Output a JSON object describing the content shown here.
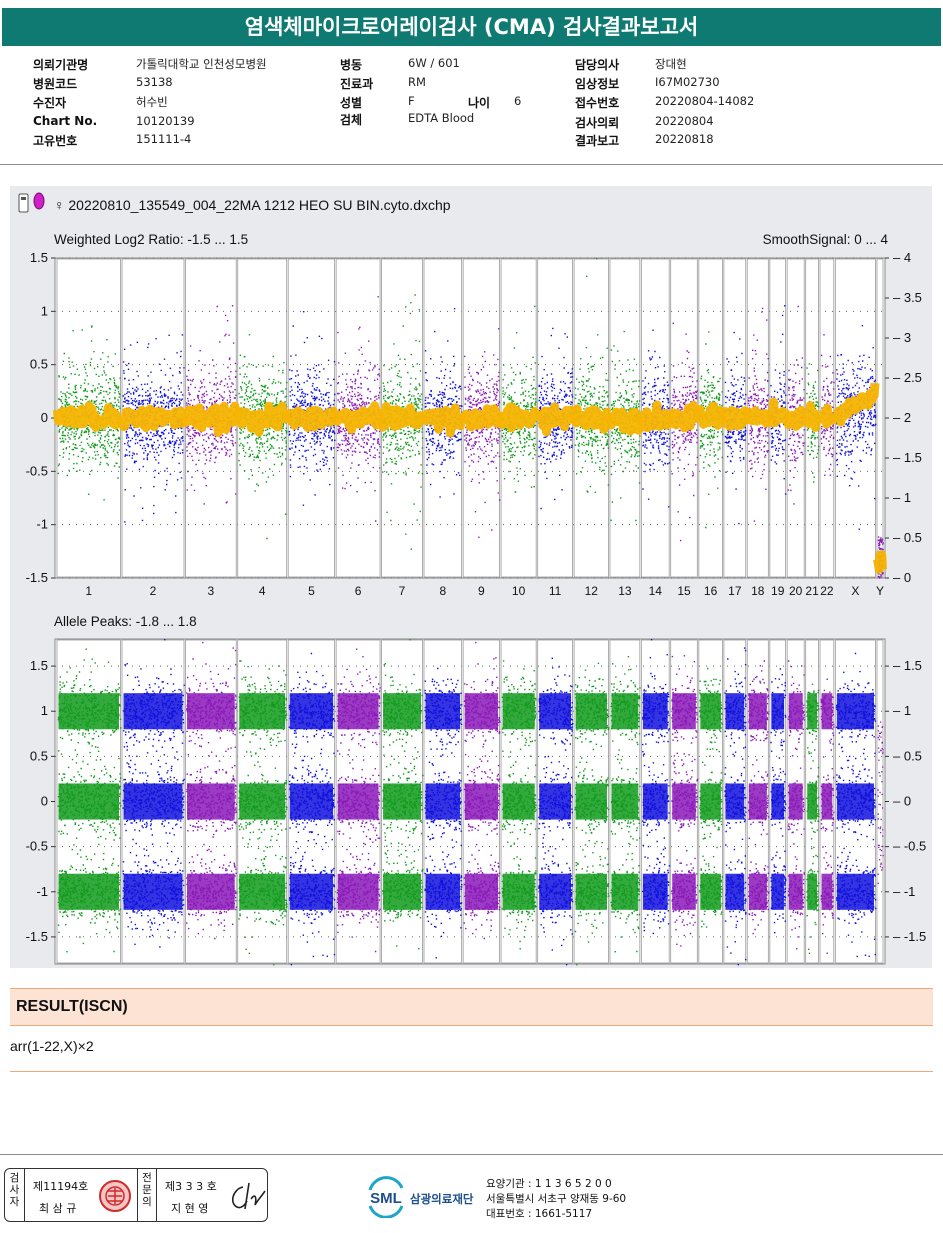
{
  "report_title": "염색체마이크로어레이검사 (CMA) 검사결과보고서",
  "patient_info": {
    "col1": [
      {
        "label": "의뢰기관명",
        "value": "가톨릭대학교 인천성모병원"
      },
      {
        "label": "병원코드",
        "value": "53138"
      },
      {
        "label": "수진자",
        "value": "허수빈"
      },
      {
        "label": "Chart No.",
        "value": "10120139"
      },
      {
        "label": "고유번호",
        "value": "151111-4"
      }
    ],
    "col2": [
      {
        "label": "병동",
        "value": "6W / 601"
      },
      {
        "label": "진료과",
        "value": "RM"
      },
      {
        "label": "성별",
        "value": "F"
      },
      {
        "label": "검체",
        "value": "EDTA Blood"
      }
    ],
    "age": {
      "label": "나이",
      "value": "6"
    },
    "col3": [
      {
        "label": "담당의사",
        "value": "장대현"
      },
      {
        "label": "임상정보",
        "value": "I67M02730"
      },
      {
        "label": "접수번호",
        "value": "20220804-14082"
      },
      {
        "label": "검사의뢰",
        "value": "20220804"
      },
      {
        "label": "결과보고",
        "value": "20220818"
      }
    ]
  },
  "chart_data": {
    "type": "scatter",
    "file_label": "♀ 20220810_135549_004_22MA 1212 HEO SU BIN.cyto.dxchp",
    "chromosomes": [
      "1",
      "2",
      "3",
      "4",
      "5",
      "6",
      "7",
      "8",
      "9",
      "10",
      "11",
      "12",
      "13",
      "14",
      "15",
      "16",
      "17",
      "18",
      "19",
      "20",
      "21",
      "22",
      "X",
      "Y"
    ],
    "chromosome_size_weights": [
      249,
      243,
      198,
      191,
      181,
      171,
      159,
      146,
      141,
      136,
      135,
      133,
      115,
      107,
      102,
      90,
      83,
      80,
      59,
      64,
      47,
      51,
      156,
      20
    ],
    "chromosome_colors": [
      "#119a1c",
      "#1010dd",
      "#8a18b8",
      "#119a1c",
      "#1010dd",
      "#8a18b8",
      "#119a1c",
      "#1010dd",
      "#8a18b8",
      "#119a1c",
      "#1010dd",
      "#119a1c",
      "#119a1c",
      "#1010dd",
      "#8a18b8",
      "#119a1c",
      "#1010dd",
      "#8a18b8",
      "#1010dd",
      "#8a18b8",
      "#119a1c",
      "#8a18b8",
      "#1010dd",
      "#8a18b8"
    ],
    "top_panel": {
      "title": "Weighted Log2 Ratio: -1.5 ... 1.5",
      "right_title": "SmoothSignal: 0 ... 4",
      "ylim": [
        -1.5,
        1.5
      ],
      "yticks": [
        "1.5",
        "1",
        "0.5",
        "0",
        "-0.5",
        "-1",
        "-1.5"
      ],
      "right_ylim": [
        0,
        4
      ],
      "right_yticks": [
        "4",
        "3.5",
        "3",
        "2.5",
        "2",
        "1.5",
        "1",
        "0.5",
        "0"
      ],
      "smooth_signal_level": 2,
      "smooth_color": "#f5b400"
    },
    "bottom_panel": {
      "title": "Allele Peaks: -1.8 ... 1.8",
      "ylim": [
        -1.8,
        1.8
      ],
      "yticks": [
        "1.5",
        "1",
        "0.5",
        "0",
        "-0.5",
        "-1",
        "-1.5"
      ],
      "right_yticks": [
        "1.5",
        "1",
        "0.5",
        "0",
        "-0.5",
        "-1",
        "-1.5"
      ],
      "band_centers": [
        1,
        0,
        -1
      ]
    }
  },
  "result": {
    "heading": "RESULT(ISCN)",
    "value": "arr(1-22,X)×2"
  },
  "footer": {
    "inspector_vlabel": "검사자",
    "inspector_license": "제11194호",
    "inspector_name": "최 삼 규",
    "specialist_vlabel": "전문의",
    "specialist_license": "제3 3 3 호",
    "specialist_name": "지 현 영",
    "logo_text": "SML",
    "org_name": "삼광의료재단",
    "org_code": "요양기관 : 1 1 3 6 5 2 0 0",
    "org_address": "서울특별시 서초구 양재동 9-60",
    "org_phone": "대표번호 : 1661-5117"
  }
}
